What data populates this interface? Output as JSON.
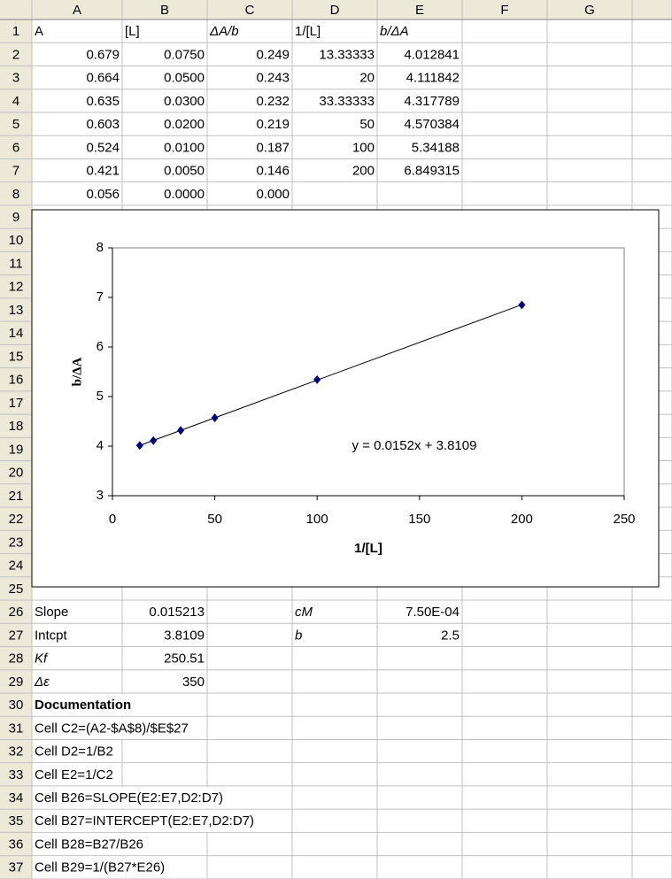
{
  "sheet": {
    "columns": [
      "A",
      "B",
      "C",
      "D",
      "E",
      "F",
      "G"
    ],
    "rows": [
      {
        "n": 1,
        "cells": {
          "A": "A",
          "B": "[L]",
          "C": "ΔA/b",
          "D": "1/[L]",
          "E": "b/ΔA"
        }
      },
      {
        "n": 2,
        "cells": {
          "A": "0.679",
          "B": "0.0750",
          "C": "0.249",
          "D": "13.33333",
          "E": "4.012841"
        }
      },
      {
        "n": 3,
        "cells": {
          "A": "0.664",
          "B": "0.0500",
          "C": "0.243",
          "D": "20",
          "E": "4.111842"
        }
      },
      {
        "n": 4,
        "cells": {
          "A": "0.635",
          "B": "0.0300",
          "C": "0.232",
          "D": "33.33333",
          "E": "4.317789"
        }
      },
      {
        "n": 5,
        "cells": {
          "A": "0.603",
          "B": "0.0200",
          "C": "0.219",
          "D": "50",
          "E": "4.570384"
        }
      },
      {
        "n": 6,
        "cells": {
          "A": "0.524",
          "B": "0.0100",
          "C": "0.187",
          "D": "100",
          "E": "5.34188"
        }
      },
      {
        "n": 7,
        "cells": {
          "A": "0.421",
          "B": "0.0050",
          "C": "0.146",
          "D": "200",
          "E": "6.849315"
        }
      },
      {
        "n": 8,
        "cells": {
          "A": "0.056",
          "B": "0.0000",
          "C": "0.000"
        }
      },
      {
        "n": 9,
        "cells": {}
      },
      {
        "n": 10,
        "cells": {}
      },
      {
        "n": 11,
        "cells": {}
      },
      {
        "n": 12,
        "cells": {}
      },
      {
        "n": 13,
        "cells": {}
      },
      {
        "n": 14,
        "cells": {}
      },
      {
        "n": 15,
        "cells": {}
      },
      {
        "n": 16,
        "cells": {}
      },
      {
        "n": 17,
        "cells": {}
      },
      {
        "n": 18,
        "cells": {}
      },
      {
        "n": 19,
        "cells": {}
      },
      {
        "n": 20,
        "cells": {}
      },
      {
        "n": 21,
        "cells": {}
      },
      {
        "n": 22,
        "cells": {}
      },
      {
        "n": 23,
        "cells": {}
      },
      {
        "n": 24,
        "cells": {}
      },
      {
        "n": 25,
        "cells": {}
      },
      {
        "n": 26,
        "cells": {
          "A": "Slope",
          "B": "0.015213",
          "D": "cM",
          "E": "7.50E-04"
        }
      },
      {
        "n": 27,
        "cells": {
          "A": "Intcpt",
          "B": "3.8109",
          "D": "b",
          "E": "2.5"
        }
      },
      {
        "n": 28,
        "cells": {
          "A": "Kf",
          "B": "250.51"
        }
      },
      {
        "n": 29,
        "cells": {
          "A": "Δε",
          "B": "350"
        }
      },
      {
        "n": 30,
        "cells": {
          "A": "Documentation"
        }
      },
      {
        "n": 31,
        "cells": {
          "A": "Cell C2=(A2-$A$8)/$E$27"
        }
      },
      {
        "n": 32,
        "cells": {
          "A": "Cell D2=1/B2"
        }
      },
      {
        "n": 33,
        "cells": {
          "A": "Cell E2=1/C2"
        }
      },
      {
        "n": 34,
        "cells": {
          "A": "Cell B26=SLOPE(E2:E7,D2:D7)"
        }
      },
      {
        "n": 35,
        "cells": {
          "A": "Cell B27=INTERCEPT(E2:E7,D2:D7)"
        }
      },
      {
        "n": 36,
        "cells": {
          "A": "Cell B28=B27/B26"
        }
      },
      {
        "n": 37,
        "cells": {
          "A": "Cell B29=1/(B27*E26)"
        }
      }
    ]
  },
  "chart_data": {
    "type": "scatter",
    "x": [
      13.33333,
      20,
      33.33333,
      50,
      100,
      200
    ],
    "values": [
      4.012841,
      4.111842,
      4.317789,
      4.570384,
      5.34188,
      6.849315
    ],
    "xlabel": "1/[L]",
    "ylabel": "b/ΔA",
    "xlim": [
      0,
      250
    ],
    "ylim": [
      3,
      8
    ],
    "xticks": [
      0,
      50,
      100,
      150,
      200,
      250
    ],
    "yticks": [
      3,
      4,
      5,
      6,
      7,
      8
    ],
    "color": "#000080",
    "annotation": "y = 0.0152x + 3.8109"
  }
}
